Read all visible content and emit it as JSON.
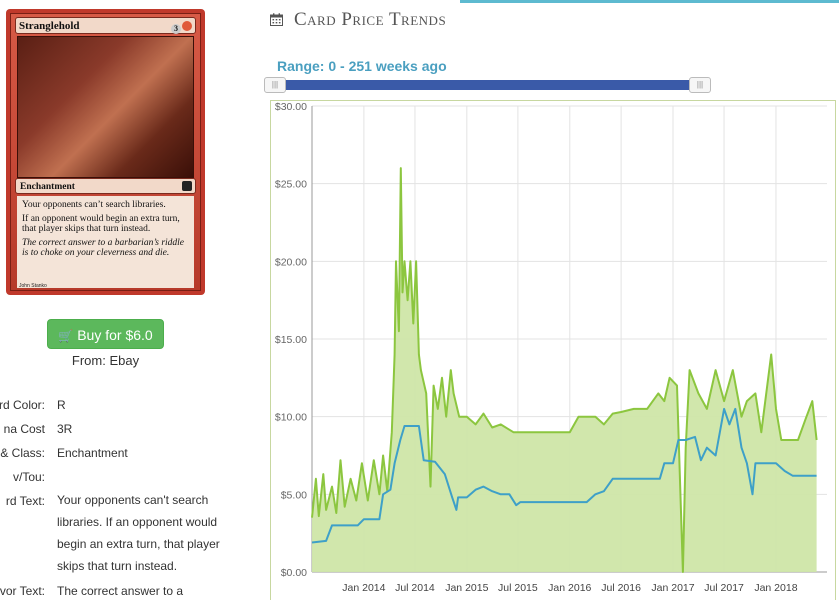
{
  "card": {
    "name": "Stranglehold",
    "cost_generic": "3",
    "cost_color": "",
    "type_line": "Enchantment",
    "rules_text": [
      "Your opponents can’t search libraries.",
      "If an opponent would begin an extra turn, that player skips that turn instead."
    ],
    "flavor_text": "The correct answer to a barbarian’s riddle is to choke on your cleverness and die.",
    "artist": "John Stanko"
  },
  "buy": {
    "label": "Buy for $6.0",
    "icon": "shopping-cart-icon"
  },
  "from": "From: Ebay",
  "details": [
    {
      "label": "rd Color:",
      "value": "R"
    },
    {
      "label": "na Cost",
      "value": "3R"
    },
    {
      "label": "e & Class:",
      "value": "Enchantment"
    },
    {
      "label": "v/Tou:",
      "value": ""
    },
    {
      "label": "rd Text:",
      "value": "Your opponents can't search libraries. If an opponent would begin an extra turn, that player skips that turn instead."
    },
    {
      "label": "vor Text:",
      "value": "The correct answer to a"
    }
  ],
  "header": {
    "title": "Card Price Trends",
    "icon": "calendar-icon",
    "accent": "#5dbad0"
  },
  "range": {
    "label": "Range: 0 - 251 weeks ago",
    "min_weeks": 0,
    "max_weeks": 251
  },
  "chart_data": {
    "type": "area",
    "title": "",
    "xlabel": "",
    "ylabel": "",
    "ylim": [
      0,
      30
    ],
    "yticks": [
      "$0.00",
      "$5.00",
      "$10.00",
      "$15.00",
      "$20.00",
      "$25.00",
      "$30.00"
    ],
    "xlim": [
      "2013-07-01",
      "2018-07-01"
    ],
    "xticks": [
      {
        "date": "2014-01-01",
        "label": "Jan 2014"
      },
      {
        "date": "2014-07-01",
        "label": "Jul 2014"
      },
      {
        "date": "2015-01-01",
        "label": "Jan 2015"
      },
      {
        "date": "2015-07-01",
        "label": "Jul 2015"
      },
      {
        "date": "2016-01-01",
        "label": "Jan 2016"
      },
      {
        "date": "2016-07-01",
        "label": "Jul 2016"
      },
      {
        "date": "2017-01-01",
        "label": "Jan 2017"
      },
      {
        "date": "2017-07-01",
        "label": "Jul 2017"
      },
      {
        "date": "2018-01-01",
        "label": "Jan 2018"
      }
    ],
    "grid": true,
    "series": [
      {
        "name": "",
        "color": "#8cc63f",
        "fill": "#cfe6a8",
        "points": [
          [
            "2013-07-01",
            3.5
          ],
          [
            "2013-07-15",
            6.0
          ],
          [
            "2013-07-25",
            3.6
          ],
          [
            "2013-08-10",
            6.3
          ],
          [
            "2013-08-20",
            4.0
          ],
          [
            "2013-09-10",
            5.5
          ],
          [
            "2013-09-25",
            3.8
          ],
          [
            "2013-10-10",
            7.2
          ],
          [
            "2013-10-25",
            4.2
          ],
          [
            "2013-11-15",
            6.0
          ],
          [
            "2013-12-05",
            4.6
          ],
          [
            "2013-12-25",
            7.0
          ],
          [
            "2014-01-15",
            4.6
          ],
          [
            "2014-02-05",
            7.2
          ],
          [
            "2014-02-25",
            5.0
          ],
          [
            "2014-03-10",
            7.5
          ],
          [
            "2014-03-25",
            5.2
          ],
          [
            "2014-04-10",
            9.0
          ],
          [
            "2014-04-20",
            14.0
          ],
          [
            "2014-04-25",
            20.0
          ],
          [
            "2014-05-05",
            15.5
          ],
          [
            "2014-05-12",
            26.0
          ],
          [
            "2014-05-18",
            18.0
          ],
          [
            "2014-05-25",
            20.0
          ],
          [
            "2014-06-05",
            17.5
          ],
          [
            "2014-06-15",
            20.0
          ],
          [
            "2014-06-25",
            16.0
          ],
          [
            "2014-07-05",
            20.0
          ],
          [
            "2014-07-15",
            14.0
          ],
          [
            "2014-07-22",
            13.0
          ],
          [
            "2014-08-10",
            11.5
          ],
          [
            "2014-08-25",
            5.5
          ],
          [
            "2014-09-05",
            12.0
          ],
          [
            "2014-09-20",
            10.5
          ],
          [
            "2014-10-05",
            12.5
          ],
          [
            "2014-10-20",
            10.0
          ],
          [
            "2014-11-05",
            13.0
          ],
          [
            "2014-11-15",
            11.5
          ],
          [
            "2014-12-05",
            10.0
          ],
          [
            "2015-01-01",
            10.0
          ],
          [
            "2015-02-01",
            9.5
          ],
          [
            "2015-03-01",
            10.2
          ],
          [
            "2015-04-01",
            9.3
          ],
          [
            "2015-05-01",
            9.5
          ],
          [
            "2015-06-15",
            9.0
          ],
          [
            "2016-01-01",
            9.0
          ],
          [
            "2016-02-01",
            10.0
          ],
          [
            "2016-04-01",
            10.0
          ],
          [
            "2016-05-01",
            9.5
          ],
          [
            "2016-06-01",
            10.2
          ],
          [
            "2016-07-01",
            10.3
          ],
          [
            "2016-08-15",
            10.5
          ],
          [
            "2016-10-01",
            10.5
          ],
          [
            "2016-11-10",
            11.5
          ],
          [
            "2016-12-01",
            11.0
          ],
          [
            "2016-12-20",
            12.5
          ],
          [
            "2017-01-15",
            12.0
          ],
          [
            "2017-02-05",
            0.0
          ],
          [
            "2017-02-15",
            8.0
          ],
          [
            "2017-03-01",
            13.0
          ],
          [
            "2017-04-01",
            11.5
          ],
          [
            "2017-05-01",
            10.5
          ],
          [
            "2017-06-01",
            13.0
          ],
          [
            "2017-07-01",
            11.0
          ],
          [
            "2017-08-01",
            13.0
          ],
          [
            "2017-09-01",
            10.0
          ],
          [
            "2017-09-20",
            11.0
          ],
          [
            "2017-10-20",
            11.5
          ],
          [
            "2017-11-10",
            9.0
          ],
          [
            "2017-12-15",
            14.0
          ],
          [
            "2018-01-01",
            10.5
          ],
          [
            "2018-01-20",
            8.5
          ],
          [
            "2018-03-20",
            8.5
          ],
          [
            "2018-04-15",
            9.8
          ],
          [
            "2018-05-10",
            11.0
          ],
          [
            "2018-05-25",
            8.5
          ]
        ]
      },
      {
        "name": "",
        "color": "#3ea0c8",
        "points": [
          [
            "2013-07-01",
            1.9
          ],
          [
            "2013-08-20",
            2.0
          ],
          [
            "2013-09-10",
            3.0
          ],
          [
            "2013-12-10",
            3.0
          ],
          [
            "2014-01-01",
            3.4
          ],
          [
            "2014-02-25",
            3.4
          ],
          [
            "2014-03-10",
            5.0
          ],
          [
            "2014-04-05",
            5.3
          ],
          [
            "2014-04-20",
            7.0
          ],
          [
            "2014-05-10",
            8.5
          ],
          [
            "2014-05-25",
            9.4
          ],
          [
            "2014-07-15",
            9.4
          ],
          [
            "2014-08-01",
            7.2
          ],
          [
            "2014-09-10",
            7.1
          ],
          [
            "2014-10-15",
            6.3
          ],
          [
            "2014-11-10",
            4.8
          ],
          [
            "2014-11-25",
            4.0
          ],
          [
            "2014-12-01",
            4.8
          ],
          [
            "2015-01-01",
            4.8
          ],
          [
            "2015-02-01",
            5.3
          ],
          [
            "2015-03-01",
            5.5
          ],
          [
            "2015-04-01",
            5.2
          ],
          [
            "2015-05-01",
            5.0
          ],
          [
            "2015-06-01",
            5.0
          ],
          [
            "2015-06-25",
            4.3
          ],
          [
            "2015-07-10",
            4.5
          ],
          [
            "2016-03-01",
            4.5
          ],
          [
            "2016-04-01",
            5.0
          ],
          [
            "2016-05-01",
            5.2
          ],
          [
            "2016-06-01",
            6.0
          ],
          [
            "2016-11-15",
            6.0
          ],
          [
            "2016-12-01",
            7.0
          ],
          [
            "2017-01-01",
            7.0
          ],
          [
            "2017-01-20",
            8.5
          ],
          [
            "2017-02-15",
            8.5
          ],
          [
            "2017-03-20",
            8.7
          ],
          [
            "2017-04-10",
            7.2
          ],
          [
            "2017-05-01",
            8.0
          ],
          [
            "2017-06-01",
            7.5
          ],
          [
            "2017-07-01",
            10.5
          ],
          [
            "2017-07-20",
            9.5
          ],
          [
            "2017-08-10",
            10.5
          ],
          [
            "2017-09-01",
            8.0
          ],
          [
            "2017-09-20",
            7.0
          ],
          [
            "2017-10-10",
            5.0
          ],
          [
            "2017-10-20",
            7.0
          ],
          [
            "2018-01-01",
            7.0
          ],
          [
            "2018-02-01",
            6.5
          ],
          [
            "2018-03-01",
            6.2
          ],
          [
            "2018-05-25",
            6.2
          ]
        ]
      }
    ]
  }
}
